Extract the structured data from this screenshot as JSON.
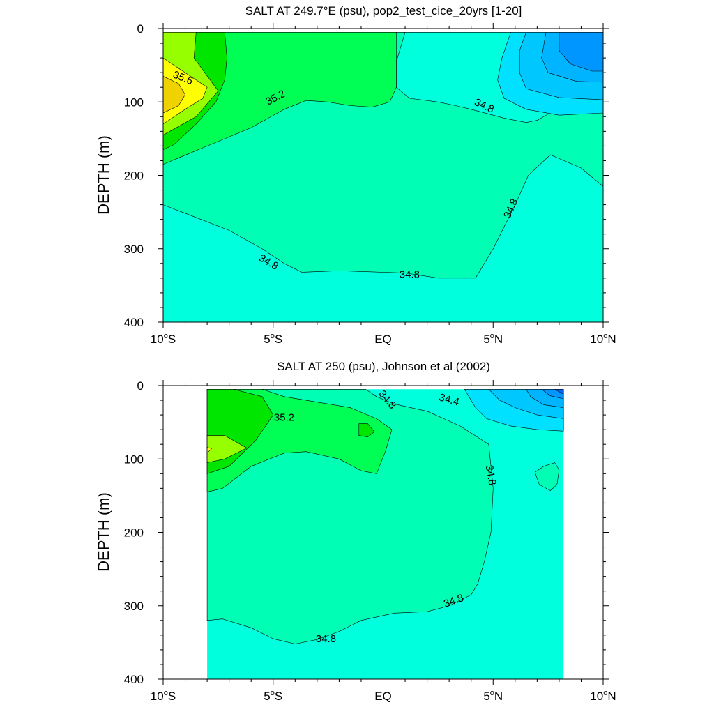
{
  "chart_data": [
    {
      "type": "contour",
      "title": "SALT AT 249.7°E (psu), pop2_test_cice_20yrs [1-20]",
      "ylabel": "DEPTH (m)",
      "xlabel": "",
      "xlim": [
        -10,
        10
      ],
      "ylim": [
        400,
        0
      ],
      "x_ticks": [
        {
          "value": -10,
          "label": "10°S"
        },
        {
          "value": -5,
          "label": "5°S"
        },
        {
          "value": 0,
          "label": "EQ"
        },
        {
          "value": 5,
          "label": "5°N"
        },
        {
          "value": 10,
          "label": "10°N"
        }
      ],
      "y_ticks": [
        0,
        100,
        200,
        300,
        400
      ],
      "data_extent": {
        "lon": [
          -10,
          10
        ],
        "depth": [
          5,
          400
        ]
      },
      "background_color": "#00FFDC",
      "regions": [
        {
          "level": 34.8,
          "color": "#00FFB4",
          "points": [
            [
              -10,
              5
            ],
            [
              10,
              5
            ],
            [
              10,
              215
            ],
            [
              9,
              190
            ],
            [
              7.6,
              172
            ],
            [
              6.6,
              200
            ],
            [
              6,
              240
            ],
            [
              5,
              300
            ],
            [
              4.2,
              340
            ],
            [
              2.5,
              340
            ],
            [
              1,
              333
            ],
            [
              -2,
              330
            ],
            [
              -3.7,
              332
            ],
            [
              -4.5,
              320
            ],
            [
              -5.5,
              300
            ],
            [
              -7,
              275
            ],
            [
              -10,
              240
            ]
          ]
        },
        {
          "level": 34.8,
          "color": "#00FFDC",
          "points": [
            [
              1,
              5
            ],
            [
              10,
              5
            ],
            [
              10,
              113
            ],
            [
              7.7,
              113
            ],
            [
              7,
              125
            ],
            [
              6.5,
              128
            ],
            [
              5.5,
              122
            ],
            [
              5,
              118
            ],
            [
              4,
              110
            ],
            [
              3.3,
              105
            ],
            [
              2.5,
              100
            ],
            [
              1.2,
              95
            ],
            [
              0.6,
              80
            ],
            [
              0.6,
              45
            ],
            [
              1,
              5
            ]
          ]
        },
        {
          "level": 35.0,
          "color": "#00FF55",
          "points": [
            [
              -10,
              5
            ],
            [
              0.6,
              5
            ],
            [
              0.6,
              45
            ],
            [
              0.6,
              80
            ],
            [
              0.3,
              100
            ],
            [
              -0.5,
              107
            ],
            [
              -1.5,
              105
            ],
            [
              -2.5,
              100
            ],
            [
              -3.5,
              98
            ],
            [
              -4.5,
              110
            ],
            [
              -6,
              135
            ],
            [
              -8,
              160
            ],
            [
              -10,
              185
            ]
          ]
        },
        {
          "level": 34.6,
          "color": "#00E1FF",
          "points": [
            [
              5.8,
              5
            ],
            [
              10,
              5
            ],
            [
              10,
              115
            ],
            [
              8,
              118
            ],
            [
              6.5,
              110
            ],
            [
              5.5,
              95
            ],
            [
              5.2,
              70
            ],
            [
              5.4,
              40
            ]
          ]
        },
        {
          "level": 34.4,
          "color": "#00C8FF",
          "points": [
            [
              6.5,
              5
            ],
            [
              10,
              5
            ],
            [
              10,
              97
            ],
            [
              8,
              94
            ],
            [
              6.5,
              82
            ],
            [
              6.2,
              60
            ],
            [
              6.2,
              30
            ]
          ]
        },
        {
          "level": 34.2,
          "color": "#00B4FF",
          "points": [
            [
              7.4,
              5
            ],
            [
              10,
              5
            ],
            [
              10,
              73
            ],
            [
              8.8,
              72
            ],
            [
              7.5,
              60
            ],
            [
              7.2,
              40
            ]
          ]
        },
        {
          "level": 34.0,
          "color": "#0096FF",
          "points": [
            [
              8,
              5
            ],
            [
              10,
              5
            ],
            [
              10,
              58
            ],
            [
              9.5,
              58
            ],
            [
              8.5,
              48
            ],
            [
              8,
              30
            ]
          ]
        },
        {
          "level": 35.2,
          "color": "#00E600",
          "points": [
            [
              -8.7,
              5
            ],
            [
              -7.2,
              5
            ],
            [
              -7.1,
              40
            ],
            [
              -7.2,
              70
            ],
            [
              -7.6,
              100
            ],
            [
              -8.5,
              130
            ],
            [
              -9.5,
              158
            ],
            [
              -10,
              165
            ],
            [
              -10,
              5
            ]
          ]
        },
        {
          "level": 35.4,
          "color": "#96FF00",
          "points": [
            [
              -10,
              5
            ],
            [
              -8.5,
              5
            ],
            [
              -8.6,
              40
            ],
            [
              -7.5,
              85
            ],
            [
              -8.5,
              120
            ],
            [
              -10,
              145
            ]
          ]
        },
        {
          "level": 35.6,
          "color": "#FFFF00",
          "points": [
            [
              -10,
              40
            ],
            [
              -9,
              60
            ],
            [
              -8,
              80
            ],
            [
              -8.2,
              95
            ],
            [
              -9,
              110
            ],
            [
              -10,
              130
            ]
          ]
        },
        {
          "level": 35.8,
          "color": "#F0D200",
          "points": [
            [
              -10,
              65
            ],
            [
              -9.3,
              75
            ],
            [
              -9,
              90
            ],
            [
              -9.3,
              105
            ],
            [
              -10,
              115
            ]
          ]
        }
      ],
      "contour_labels": [
        {
          "text": "35.6",
          "lon": -9.1,
          "depth": 67,
          "angle": 22
        },
        {
          "text": "35.2",
          "lon": -4.9,
          "depth": 94,
          "angle": -28
        },
        {
          "text": "34.8",
          "lon": 4.6,
          "depth": 105,
          "angle": 25
        },
        {
          "text": "34.8",
          "lon": 5.8,
          "depth": 245,
          "angle": -65
        },
        {
          "text": "34.8",
          "lon": -5.2,
          "depth": 318,
          "angle": 30
        },
        {
          "text": "34.8",
          "lon": 1.2,
          "depth": 335,
          "angle": 0
        }
      ]
    },
    {
      "type": "contour",
      "title": "SALT AT 250 (psu), Johnson et al (2002)",
      "ylabel": "DEPTH (m)",
      "xlabel": "",
      "xlim": [
        -10,
        10
      ],
      "ylim": [
        400,
        0
      ],
      "x_ticks": [
        {
          "value": -10,
          "label": "10°S"
        },
        {
          "value": -5,
          "label": "5°S"
        },
        {
          "value": 0,
          "label": "EQ"
        },
        {
          "value": 5,
          "label": "5°N"
        },
        {
          "value": 10,
          "label": "10°N"
        }
      ],
      "y_ticks": [
        0,
        100,
        200,
        300,
        400
      ],
      "data_extent": {
        "lon": [
          -8,
          8.2
        ],
        "depth": [
          5,
          400
        ]
      },
      "background_color": "#00FFDC",
      "regions": [
        {
          "level": 34.8,
          "color": "#00FFB4",
          "points": [
            [
              -8,
              5
            ],
            [
              -0.8,
              5
            ],
            [
              -0.3,
              15
            ],
            [
              0.5,
              25
            ],
            [
              2,
              35
            ],
            [
              3.5,
              55
            ],
            [
              4.8,
              80
            ],
            [
              4.9,
              110
            ],
            [
              5,
              140
            ],
            [
              4.9,
              200
            ],
            [
              4.6,
              240
            ],
            [
              4.3,
              270
            ],
            [
              4,
              285
            ],
            [
              3,
              300
            ],
            [
              2,
              308
            ],
            [
              0.5,
              310
            ],
            [
              -1,
              320
            ],
            [
              -2,
              335
            ],
            [
              -3,
              346
            ],
            [
              -4,
              352
            ],
            [
              -5,
              345
            ],
            [
              -6,
              330
            ],
            [
              -7.3,
              318
            ],
            [
              -8,
              320
            ]
          ]
        },
        {
          "level": 35.0,
          "color": "#00FF55",
          "points": [
            [
              -8,
              5
            ],
            [
              -5.5,
              5
            ],
            [
              -4.5,
              15
            ],
            [
              -1.5,
              30
            ],
            [
              -0.3,
              45
            ],
            [
              0.4,
              60
            ],
            [
              0.1,
              90
            ],
            [
              -0.3,
              120
            ],
            [
              -1,
              116
            ],
            [
              -2,
              100
            ],
            [
              -3.5,
              90
            ],
            [
              -4.5,
              92
            ],
            [
              -6,
              110
            ],
            [
              -7.3,
              140
            ],
            [
              -8,
              145
            ]
          ]
        },
        {
          "level": 35.2,
          "color": "#00E600",
          "points": [
            [
              -8,
              5
            ],
            [
              -6.8,
              5
            ],
            [
              -5.5,
              15
            ],
            [
              -5,
              40
            ],
            [
              -5.8,
              75
            ],
            [
              -7,
              110
            ],
            [
              -8,
              120
            ]
          ]
        },
        {
          "level": 35.4,
          "color": "#96FF00",
          "points": [
            [
              -8,
              68
            ],
            [
              -7.2,
              68
            ],
            [
              -6.2,
              85
            ],
            [
              -7.2,
              100
            ],
            [
              -8,
              105
            ]
          ]
        },
        {
          "level": 35.6,
          "color": "#FFFF00",
          "points": [
            [
              -8,
              84
            ],
            [
              -7.8,
              86
            ],
            [
              -8,
              92
            ]
          ]
        },
        {
          "level": 35.2,
          "color": "#00E600",
          "points": [
            [
              -1.1,
              52
            ],
            [
              -0.7,
              52
            ],
            [
              -0.4,
              63
            ],
            [
              -0.7,
              70
            ],
            [
              -1.1,
              68
            ]
          ]
        },
        {
          "level": 34.8,
          "color": "#00FFB4",
          "points": [
            [
              7.3,
              110
            ],
            [
              7.8,
              105
            ],
            [
              8,
              115
            ],
            [
              7.9,
              135
            ],
            [
              7.6,
              143
            ],
            [
              7.1,
              135
            ],
            [
              6.9,
              118
            ]
          ]
        },
        {
          "level": 34.6,
          "color": "#00E1FF",
          "points": [
            [
              3.7,
              5
            ],
            [
              8.2,
              5
            ],
            [
              8.2,
              62
            ],
            [
              7,
              60
            ],
            [
              5.8,
              55
            ],
            [
              4.7,
              45
            ],
            [
              4.2,
              30
            ]
          ]
        },
        {
          "level": 34.4,
          "color": "#00C8FF",
          "points": [
            [
              4.8,
              5
            ],
            [
              8.2,
              5
            ],
            [
              8.2,
              45
            ],
            [
              7,
              40
            ],
            [
              6,
              30
            ],
            [
              5.3,
              20
            ]
          ]
        },
        {
          "level": 34.2,
          "color": "#00B4FF",
          "points": [
            [
              6.5,
              5
            ],
            [
              8.2,
              5
            ],
            [
              8.2,
              30
            ],
            [
              7.3,
              26
            ],
            [
              6.7,
              15
            ]
          ]
        },
        {
          "level": 34.0,
          "color": "#0096FF",
          "points": [
            [
              7.2,
              5
            ],
            [
              8.2,
              5
            ],
            [
              8.2,
              18
            ],
            [
              7.6,
              14
            ]
          ]
        },
        {
          "level": 33.8,
          "color": "#0064FF",
          "points": [
            [
              7.8,
              5
            ],
            [
              8.2,
              5
            ],
            [
              8.2,
              12
            ]
          ]
        }
      ],
      "contour_labels": [
        {
          "text": "35.2",
          "lon": -4.5,
          "depth": 43,
          "angle": 0
        },
        {
          "text": "34.8",
          "lon": 0.2,
          "depth": 19,
          "angle": 50
        },
        {
          "text": "34.4",
          "lon": 3.0,
          "depth": 19,
          "angle": 15
        },
        {
          "text": "34.8",
          "lon": 4.9,
          "depth": 122,
          "angle": 80
        },
        {
          "text": "34.8",
          "lon": 3.2,
          "depth": 293,
          "angle": -20
        },
        {
          "text": "34.8",
          "lon": -2.6,
          "depth": 345,
          "angle": 0
        }
      ]
    }
  ]
}
